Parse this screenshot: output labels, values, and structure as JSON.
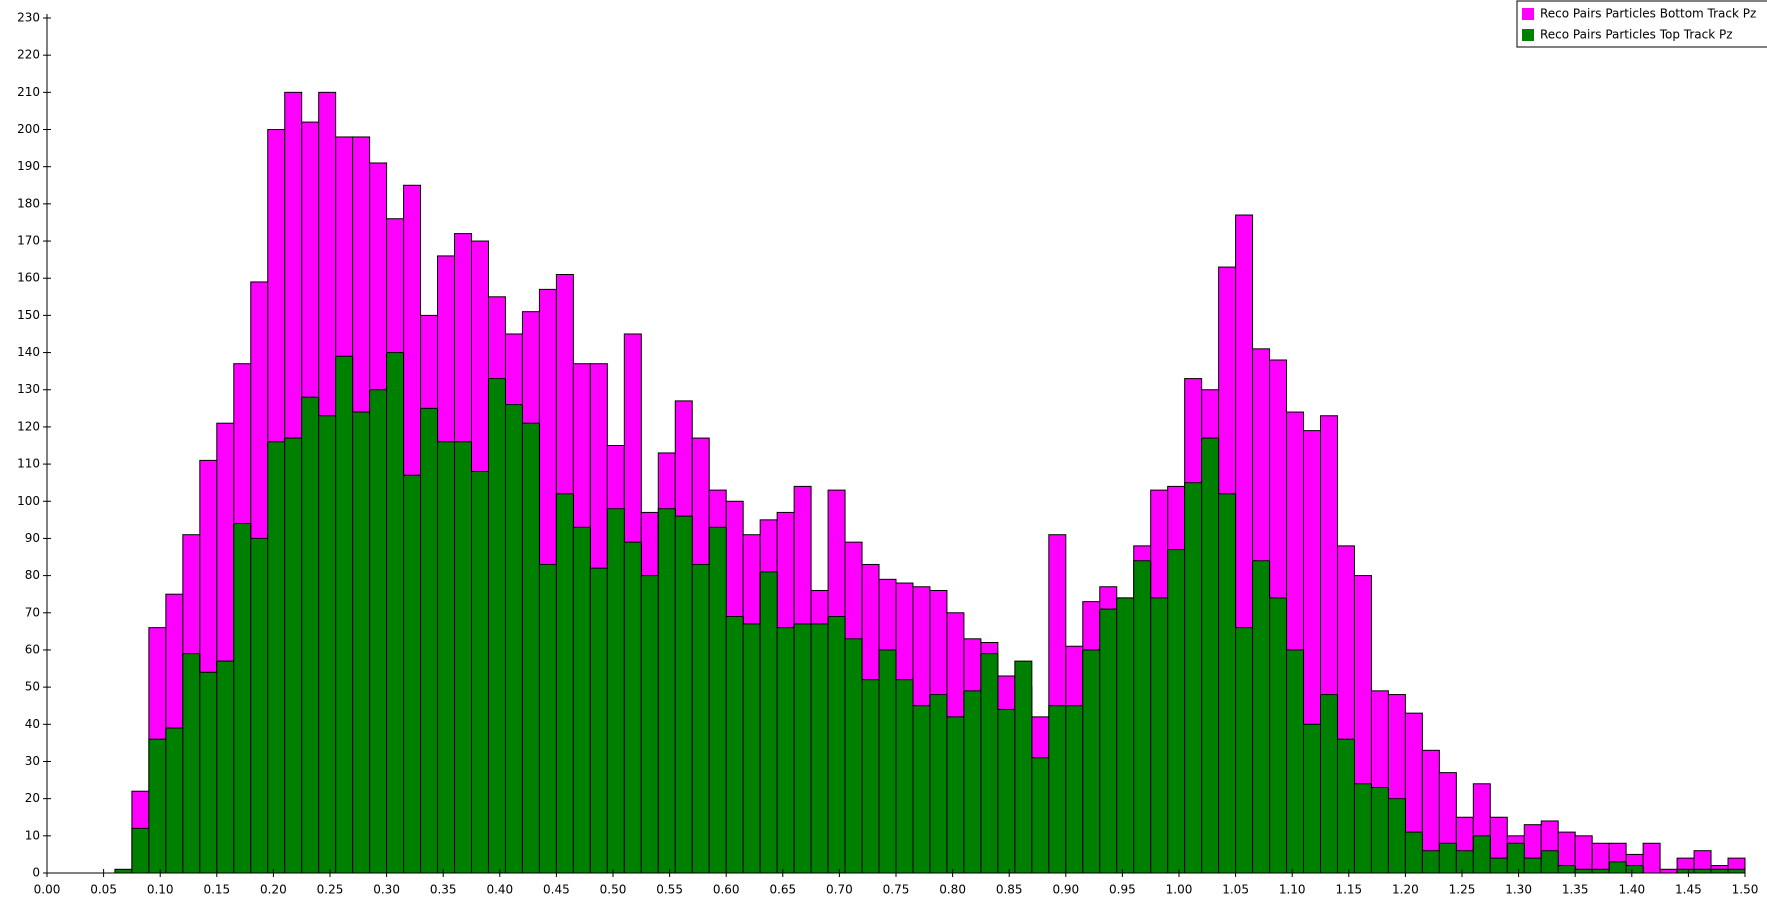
{
  "chart_data": {
    "type": "histogram",
    "bins": [
      0,
      0.015,
      0.03,
      0.045,
      0.06,
      0.075,
      0.09,
      0.105,
      0.12,
      0.135,
      0.15,
      0.165,
      0.18,
      0.195,
      0.21,
      0.225,
      0.24,
      0.255,
      0.27,
      0.285,
      0.3,
      0.315,
      0.33,
      0.345,
      0.36,
      0.375,
      0.39,
      0.405,
      0.42,
      0.435,
      0.45,
      0.465,
      0.48,
      0.495,
      0.51,
      0.525,
      0.54,
      0.555,
      0.57,
      0.585,
      0.6,
      0.615,
      0.63,
      0.645,
      0.66,
      0.675,
      0.69,
      0.705,
      0.72,
      0.735,
      0.75,
      0.765,
      0.78,
      0.795,
      0.81,
      0.825,
      0.84,
      0.855,
      0.87,
      0.885,
      0.9,
      0.915,
      0.93,
      0.945,
      0.96,
      0.975,
      0.99,
      1.005,
      1.02,
      1.035,
      1.05,
      1.065,
      1.08,
      1.095,
      1.11,
      1.125,
      1.14,
      1.155,
      1.17,
      1.185,
      1.2,
      1.215,
      1.23,
      1.245,
      1.26,
      1.275,
      1.29,
      1.305,
      1.32,
      1.335,
      1.35,
      1.365,
      1.38,
      1.395,
      1.41,
      1.425,
      1.44,
      1.455,
      1.47,
      1.485,
      1.5
    ],
    "series": [
      {
        "name": "Reco Pairs Particles Bottom Track Pz",
        "color": "#ff00ff",
        "values": [
          0,
          0,
          0,
          0,
          0,
          22,
          66,
          75,
          91,
          111,
          121,
          137,
          159,
          200,
          210,
          202,
          210,
          198,
          198,
          191,
          176,
          185,
          150,
          166,
          172,
          170,
          155,
          145,
          151,
          157,
          161,
          137,
          137,
          115,
          145,
          97,
          113,
          127,
          117,
          103,
          100,
          91,
          95,
          97,
          104,
          76,
          103,
          89,
          83,
          79,
          78,
          77,
          76,
          70,
          63,
          62,
          53,
          50,
          42,
          91,
          61,
          73,
          77,
          74,
          88,
          103,
          104,
          133,
          130,
          163,
          177,
          141,
          138,
          124,
          119,
          123,
          88,
          80,
          49,
          48,
          43,
          33,
          27,
          15,
          24,
          15,
          10,
          13,
          14,
          11,
          10,
          8,
          8,
          5,
          8,
          1,
          4,
          6,
          2,
          4
        ]
      },
      {
        "name": "Reco Pairs Particles Top Track Pz",
        "color": "#008000",
        "values": [
          0,
          0,
          0,
          0,
          1,
          12,
          36,
          39,
          59,
          54,
          57,
          94,
          90,
          116,
          117,
          128,
          123,
          139,
          124,
          130,
          140,
          107,
          125,
          116,
          116,
          108,
          133,
          126,
          121,
          83,
          102,
          93,
          82,
          98,
          89,
          80,
          98,
          96,
          83,
          93,
          69,
          67,
          81,
          66,
          67,
          67,
          69,
          63,
          52,
          60,
          52,
          45,
          48,
          42,
          49,
          59,
          44,
          57,
          31,
          45,
          45,
          60,
          71,
          74,
          84,
          74,
          87,
          105,
          117,
          102,
          66,
          84,
          74,
          60,
          40,
          48,
          36,
          24,
          23,
          20,
          11,
          6,
          8,
          6,
          10,
          4,
          8,
          4,
          6,
          2,
          1,
          1,
          3,
          2,
          0,
          0,
          1,
          1,
          1,
          1
        ]
      }
    ],
    "xlim": [
      0,
      1.5
    ],
    "ylim": [
      0,
      230
    ],
    "xticks": [
      {
        "value": 0,
        "label": "0.00"
      },
      {
        "value": 0.05,
        "label": "0.05"
      },
      {
        "value": 0.1,
        "label": "0.10"
      },
      {
        "value": 0.15,
        "label": "0.15"
      },
      {
        "value": 0.2,
        "label": "0.20"
      },
      {
        "value": 0.25,
        "label": "0.25"
      },
      {
        "value": 0.3,
        "label": "0.30"
      },
      {
        "value": 0.35,
        "label": "0.35"
      },
      {
        "value": 0.4,
        "label": "0.40"
      },
      {
        "value": 0.45,
        "label": "0.45"
      },
      {
        "value": 0.5,
        "label": "0.50"
      },
      {
        "value": 0.55,
        "label": "0.55"
      },
      {
        "value": 0.6,
        "label": "0.60"
      },
      {
        "value": 0.65,
        "label": "0.65"
      },
      {
        "value": 0.7,
        "label": "0.70"
      },
      {
        "value": 0.75,
        "label": "0.75"
      },
      {
        "value": 0.8,
        "label": "0.80"
      },
      {
        "value": 0.85,
        "label": "0.85"
      },
      {
        "value": 0.9,
        "label": "0.90"
      },
      {
        "value": 0.95,
        "label": "0.95"
      },
      {
        "value": 1.0,
        "label": "1.00"
      },
      {
        "value": 1.05,
        "label": "1.05"
      },
      {
        "value": 1.1,
        "label": "1.10"
      },
      {
        "value": 1.15,
        "label": "1.15"
      },
      {
        "value": 1.2,
        "label": "1.20"
      },
      {
        "value": 1.25,
        "label": "1.25"
      },
      {
        "value": 1.3,
        "label": "1.30"
      },
      {
        "value": 1.35,
        "label": "1.35"
      },
      {
        "value": 1.4,
        "label": "1.40"
      },
      {
        "value": 1.45,
        "label": "1.45"
      },
      {
        "value": 1.5,
        "label": "1.50"
      }
    ],
    "yticks": [
      0,
      10,
      20,
      30,
      40,
      50,
      60,
      70,
      80,
      90,
      100,
      110,
      120,
      130,
      140,
      150,
      160,
      170,
      180,
      190,
      200,
      210,
      220,
      230
    ],
    "legend": "upper right"
  }
}
